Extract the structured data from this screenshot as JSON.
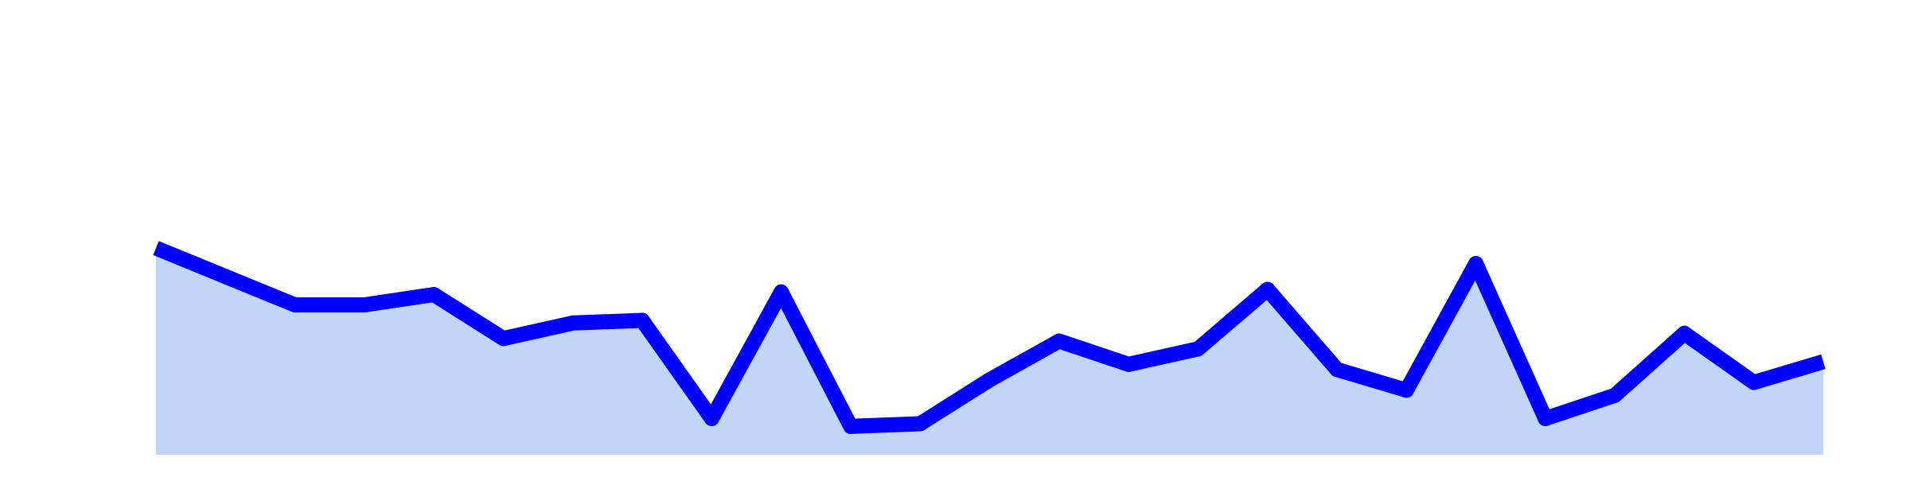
{
  "chart_data": {
    "type": "area",
    "title": "",
    "xlabel": "",
    "ylabel": "",
    "x": [
      0,
      1,
      2,
      3,
      4,
      5,
      6,
      7,
      8,
      9,
      10,
      11,
      12,
      13,
      14,
      15,
      16,
      17,
      18,
      19,
      20,
      21,
      22,
      23,
      24
    ],
    "series": [
      {
        "name": "",
        "values": [
          80,
          69,
          58,
          58,
          62,
          45,
          51,
          52,
          14,
          63,
          11,
          12,
          29,
          44,
          35,
          41,
          64,
          33,
          25,
          74,
          14,
          23,
          47,
          28,
          36
        ]
      }
    ],
    "ylim": [
      0,
      176
    ],
    "grid": false,
    "legend": "none",
    "colors": {
      "line": "#0000ff",
      "fill": "#c1d5f6",
      "background": "#ffffff"
    }
  }
}
